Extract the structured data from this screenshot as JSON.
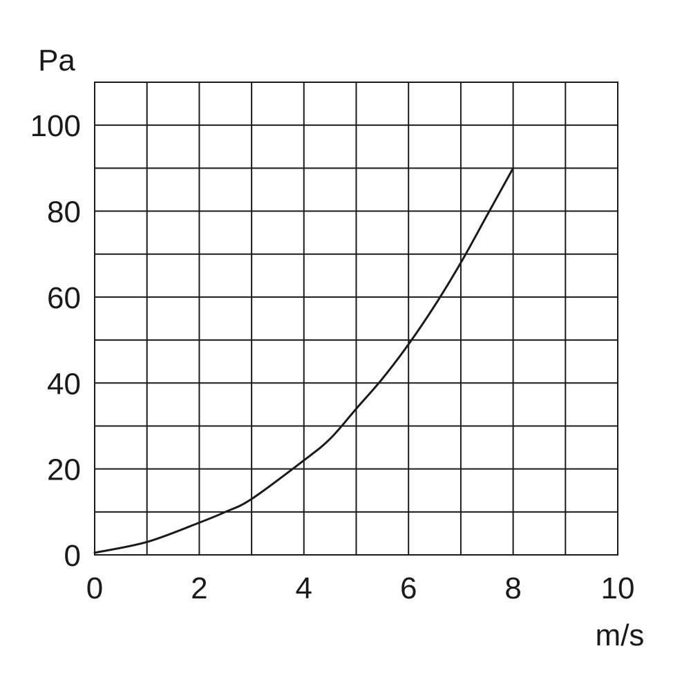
{
  "chart_data": {
    "type": "line",
    "title": "",
    "xlabel": "m/s",
    "ylabel": "Pa",
    "xlim": [
      0,
      10
    ],
    "ylim": [
      0,
      110
    ],
    "grid": true,
    "x_ticks": [
      0,
      2,
      4,
      6,
      8,
      10
    ],
    "y_ticks": [
      0,
      20,
      40,
      60,
      80,
      100
    ],
    "x_tick_labels": [
      "0",
      "2",
      "4",
      "6",
      "8",
      "10"
    ],
    "y_tick_labels": [
      "0",
      "20",
      "40",
      "60",
      "80",
      "100"
    ],
    "x_grid_step": 1,
    "y_grid_step": 10,
    "series": [
      {
        "x": [
          0,
          1,
          2,
          2.5,
          3,
          4,
          4.5,
          5,
          5.5,
          6,
          6.5,
          7,
          7.5,
          8
        ],
        "y": [
          0.5,
          3,
          7.5,
          10,
          13,
          22,
          27,
          34,
          41,
          49,
          58,
          68,
          79,
          90
        ]
      }
    ]
  }
}
